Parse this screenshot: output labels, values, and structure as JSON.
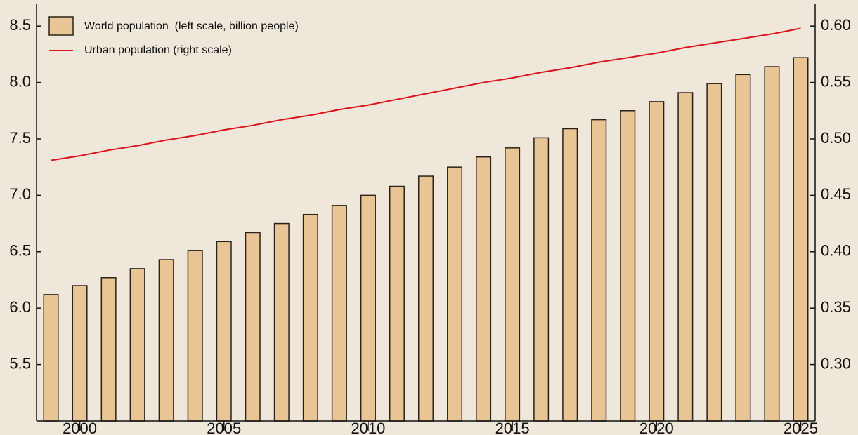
{
  "chart_data": {
    "type": "bar-line",
    "x": [
      1999,
      2000,
      2001,
      2002,
      2003,
      2004,
      2005,
      2006,
      2007,
      2008,
      2009,
      2010,
      2011,
      2012,
      2013,
      2014,
      2015,
      2016,
      2017,
      2018,
      2019,
      2020,
      2021,
      2022,
      2023,
      2024,
      2025
    ],
    "series": [
      {
        "name": "World population  (left scale, billion people)",
        "color": "#e9c595",
        "type": "bar",
        "values": [
          6.12,
          6.2,
          6.27,
          6.35,
          6.43,
          6.51,
          6.59,
          6.67,
          6.75,
          6.83,
          6.91,
          7.0,
          7.08,
          7.17,
          7.25,
          7.34,
          7.42,
          7.51,
          7.59,
          7.67,
          7.75,
          7.83,
          7.91,
          7.99,
          8.07,
          8.14,
          8.22
        ]
      },
      {
        "name": "Urban population (right scale)",
        "color": "#d9141b",
        "type": "line",
        "axis": "y2",
        "values": [
          0.481,
          0.485,
          0.49,
          0.494,
          0.499,
          0.503,
          0.508,
          0.512,
          0.517,
          0.521,
          0.526,
          0.53,
          0.535,
          0.54,
          0.545,
          0.55,
          0.554,
          0.559,
          0.563,
          0.568,
          0.572,
          0.576,
          0.581,
          0.585,
          0.589,
          0.593,
          0.598
        ]
      }
    ],
    "xlim": [
      1998.5,
      2025.5
    ],
    "xticks": [
      2000,
      2005,
      2010,
      2015,
      2020,
      2025
    ],
    "ylim": [
      5.0,
      8.7
    ],
    "yticks": [
      5.5,
      {
        "value": 6.0,
        "label": "6.0"
      },
      6.5,
      {
        "value": 7.0,
        "label": "7.0"
      },
      7.5,
      {
        "value": 8.0,
        "label": "8.0"
      },
      8.5
    ],
    "y2lim": [
      0.25,
      0.62
    ],
    "y2ticks": [
      {
        "value": 0.3,
        "label": "0.30"
      },
      0.35,
      {
        "value": 0.4,
        "label": "0.40"
      },
      0.45,
      {
        "value": 0.5,
        "label": "0.50"
      },
      0.55,
      {
        "value": 0.6,
        "label": "0.60"
      }
    ]
  }
}
